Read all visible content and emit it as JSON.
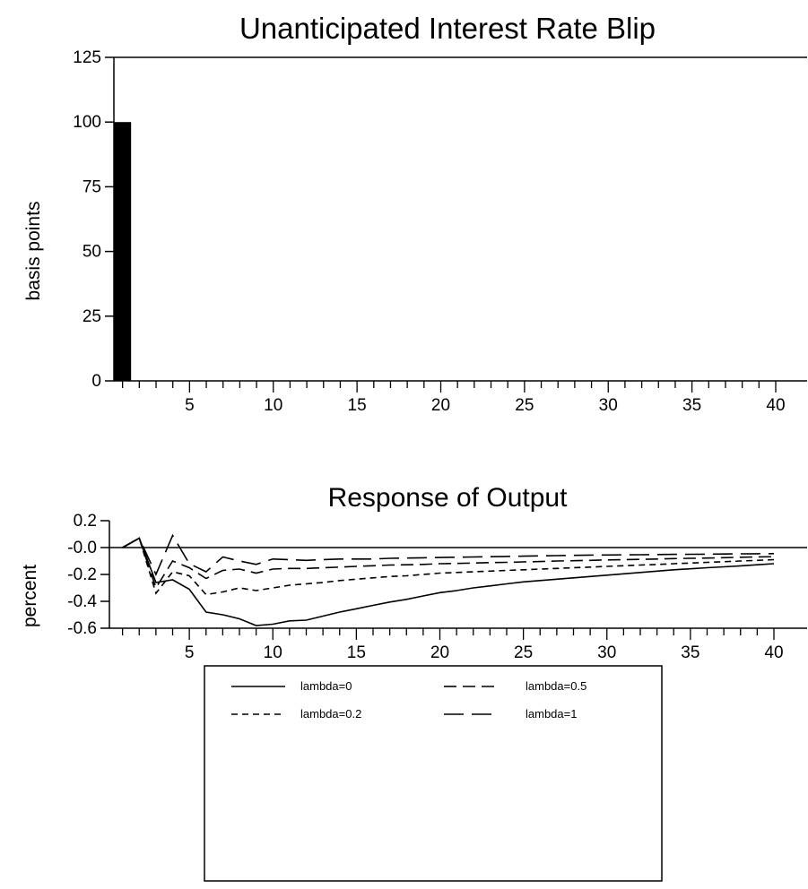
{
  "chart_data": [
    {
      "type": "bar",
      "title": "Unanticipated Interest Rate Blip",
      "xlabel": "",
      "ylabel": "basis points",
      "xlim": [
        0,
        41
      ],
      "ylim": [
        0,
        125
      ],
      "xticks": [
        5,
        10,
        15,
        20,
        25,
        30,
        35,
        40
      ],
      "yticks": [
        0,
        25,
        50,
        75,
        100,
        125
      ],
      "x": [
        1
      ],
      "values": [
        100
      ],
      "colors": {
        "bar": "#000000"
      }
    },
    {
      "type": "line",
      "title": "Response of Output",
      "xlabel": "",
      "ylabel": "percent",
      "xlim": [
        0,
        41
      ],
      "ylim": [
        -0.6,
        0.2
      ],
      "xticks": [
        5,
        10,
        15,
        20,
        25,
        30,
        35,
        40
      ],
      "yticks": [
        {
          "value": 0.2,
          "label": "0.2"
        },
        {
          "value": 0,
          "label": "-0.0"
        },
        {
          "value": -0.2,
          "label": "-0.2"
        },
        {
          "value": -0.4,
          "label": "-0.4"
        },
        {
          "value": -0.6,
          "label": "-0.6"
        }
      ],
      "x": [
        1,
        2,
        3,
        4,
        5,
        6,
        7,
        8,
        9,
        10,
        11,
        12,
        13,
        14,
        15,
        16,
        17,
        18,
        19,
        20,
        21,
        22,
        23,
        24,
        25,
        26,
        27,
        28,
        29,
        30,
        31,
        32,
        33,
        34,
        35,
        36,
        37,
        38,
        39,
        40
      ],
      "series": [
        {
          "name": "lambda=0",
          "dash": "solid",
          "values": [
            0.0,
            0.07,
            -0.26,
            -0.24,
            -0.31,
            -0.48,
            -0.5,
            -0.53,
            -0.58,
            -0.57,
            -0.545,
            -0.54,
            -0.51,
            -0.48,
            -0.455,
            -0.43,
            -0.405,
            -0.385,
            -0.36,
            -0.335,
            -0.32,
            -0.3,
            -0.285,
            -0.27,
            -0.255,
            -0.245,
            -0.235,
            -0.225,
            -0.215,
            -0.205,
            -0.195,
            -0.185,
            -0.175,
            -0.165,
            -0.158,
            -0.15,
            -0.143,
            -0.136,
            -0.128,
            -0.12
          ]
        },
        {
          "name": "lambda=0.2",
          "dash": "short",
          "values": [
            0.0,
            0.07,
            -0.34,
            -0.18,
            -0.21,
            -0.35,
            -0.33,
            -0.3,
            -0.32,
            -0.3,
            -0.28,
            -0.27,
            -0.26,
            -0.245,
            -0.235,
            -0.225,
            -0.215,
            -0.21,
            -0.2,
            -0.19,
            -0.185,
            -0.18,
            -0.175,
            -0.17,
            -0.165,
            -0.16,
            -0.155,
            -0.15,
            -0.145,
            -0.14,
            -0.135,
            -0.13,
            -0.126,
            -0.12,
            -0.115,
            -0.11,
            -0.105,
            -0.1,
            -0.095,
            -0.09
          ]
        },
        {
          "name": "lambda=0.5",
          "dash": "medium",
          "values": [
            0.0,
            0.07,
            -0.3,
            -0.1,
            -0.15,
            -0.23,
            -0.17,
            -0.16,
            -0.19,
            -0.16,
            -0.155,
            -0.155,
            -0.15,
            -0.145,
            -0.14,
            -0.135,
            -0.13,
            -0.128,
            -0.125,
            -0.12,
            -0.118,
            -0.115,
            -0.112,
            -0.11,
            -0.107,
            -0.104,
            -0.1,
            -0.098,
            -0.095,
            -0.092,
            -0.09,
            -0.088,
            -0.085,
            -0.082,
            -0.08,
            -0.078,
            -0.075,
            -0.072,
            -0.07,
            -0.068
          ]
        },
        {
          "name": "lambda=1",
          "dash": "long",
          "values": [
            0.0,
            0.07,
            -0.2,
            0.09,
            -0.12,
            -0.18,
            -0.07,
            -0.1,
            -0.125,
            -0.085,
            -0.09,
            -0.095,
            -0.09,
            -0.085,
            -0.085,
            -0.085,
            -0.08,
            -0.078,
            -0.076,
            -0.074,
            -0.072,
            -0.07,
            -0.068,
            -0.066,
            -0.064,
            -0.062,
            -0.06,
            -0.058,
            -0.056,
            -0.055,
            -0.054,
            -0.053,
            -0.052,
            -0.051,
            -0.05,
            -0.049,
            -0.048,
            -0.047,
            -0.046,
            -0.045
          ]
        }
      ],
      "legend": {
        "position": "bottom",
        "columns": 2
      }
    }
  ]
}
